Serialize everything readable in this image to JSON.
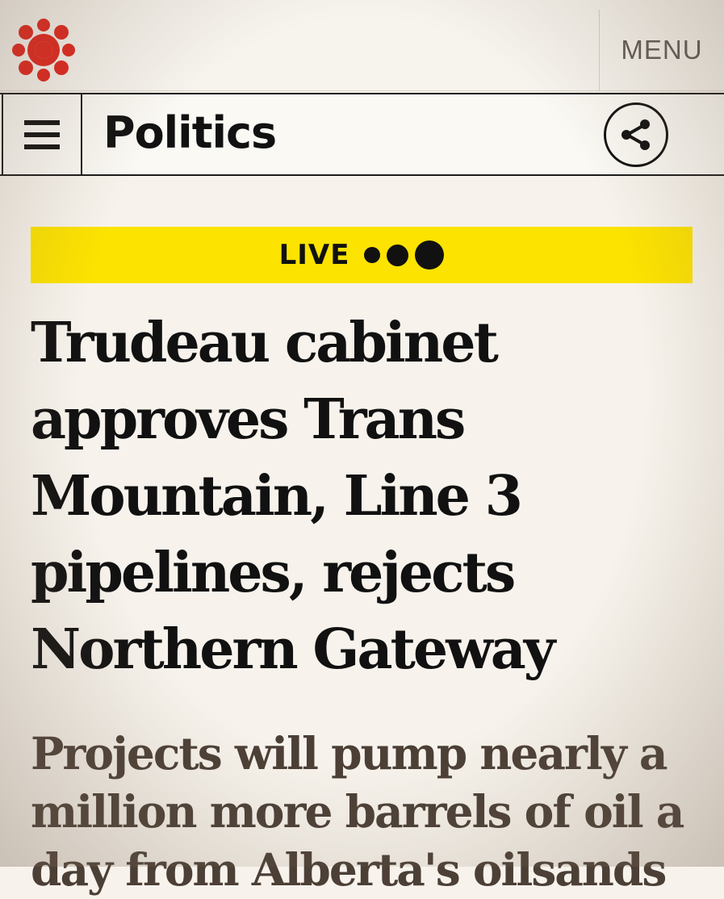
{
  "topbar": {
    "logo": "cbc-gem-logo",
    "menu_label": "MENU"
  },
  "sectionbar": {
    "menu_icon": "hamburger-icon",
    "title": "Politics",
    "share_icon": "share-icon"
  },
  "live_banner": {
    "label": "LIVE"
  },
  "article": {
    "headline": "Trudeau cabinet approves Trans Mountain, Line 3 pipelines, rejects Northern Gateway",
    "dek": "Projects will pump nearly a million more barrels of oil a day from Alberta's oilsands"
  },
  "colors": {
    "live_yellow": "#fde300",
    "logo_red": "#e2231a",
    "dek_brown": "#4b3f36"
  }
}
